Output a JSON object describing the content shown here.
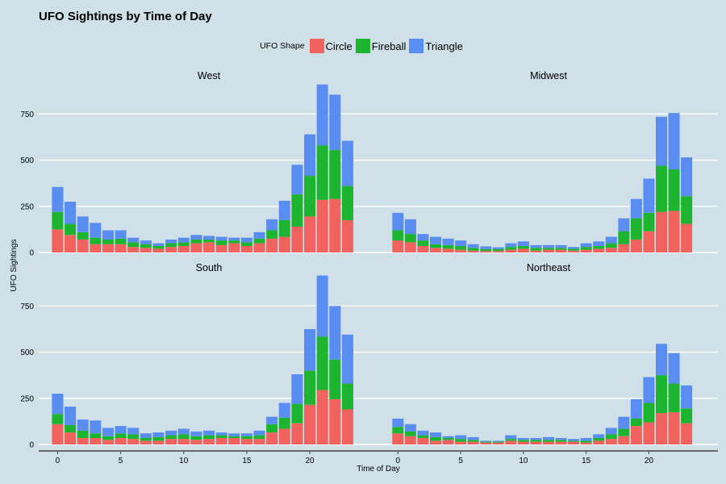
{
  "colors": {
    "background": "#cfe0e8",
    "grid": "#ffffff",
    "axis": "#444444",
    "circle": "#f2635f",
    "fireball": "#1db52f",
    "triangle": "#5a8df2"
  },
  "chart_data": {
    "type": "bar",
    "stacked": true,
    "faceted": true,
    "title": "UFO Sightings by Time of Day",
    "xlabel": "Time of Day",
    "ylabel": "UFO Sightings",
    "legend_title": "UFO Shape",
    "legend_position": "top",
    "xlim": [
      -1.5,
      25.5
    ],
    "ylim": [
      0,
      900
    ],
    "xticks": [
      0,
      5,
      10,
      15,
      20
    ],
    "yticks": [
      0,
      250,
      500,
      750
    ],
    "grid": true,
    "series_names": [
      "Circle",
      "Fireball",
      "Triangle"
    ],
    "hours": [
      0,
      1,
      2,
      3,
      4,
      5,
      6,
      7,
      8,
      9,
      10,
      11,
      12,
      13,
      14,
      15,
      16,
      17,
      18,
      19,
      20,
      21,
      22,
      23
    ],
    "panels": [
      {
        "name": "West",
        "series": [
          {
            "name": "Circle",
            "values": [
              125,
              95,
              70,
              45,
              45,
              45,
              30,
              25,
              20,
              30,
              35,
              50,
              55,
              40,
              50,
              35,
              50,
              75,
              85,
              140,
              195,
              285,
              290,
              175
            ]
          },
          {
            "name": "Fireball",
            "values": [
              95,
              60,
              40,
              35,
              25,
              30,
              25,
              20,
              15,
              20,
              20,
              20,
              15,
              25,
              15,
              20,
              25,
              45,
              90,
              175,
              220,
              295,
              265,
              185
            ]
          },
          {
            "name": "Triangle",
            "values": [
              135,
              120,
              85,
              80,
              50,
              45,
              25,
              20,
              15,
              20,
              25,
              25,
              20,
              20,
              15,
              25,
              35,
              60,
              105,
              160,
              225,
              330,
              300,
              245
            ]
          }
        ]
      },
      {
        "name": "Midwest",
        "series": [
          {
            "name": "Circle",
            "values": [
              65,
              55,
              35,
              25,
              20,
              15,
              10,
              8,
              8,
              15,
              20,
              10,
              15,
              15,
              10,
              15,
              20,
              25,
              45,
              70,
              115,
              220,
              225,
              155
            ]
          },
          {
            "name": "Fireball",
            "values": [
              55,
              45,
              30,
              20,
              20,
              20,
              15,
              10,
              10,
              15,
              15,
              15,
              10,
              10,
              10,
              15,
              15,
              25,
              70,
              115,
              100,
              250,
              225,
              150
            ]
          },
          {
            "name": "Triangle",
            "values": [
              95,
              80,
              35,
              40,
              35,
              30,
              20,
              15,
              10,
              20,
              25,
              15,
              15,
              15,
              10,
              20,
              25,
              35,
              70,
              105,
              185,
              265,
              305,
              210
            ]
          }
        ]
      },
      {
        "name": "South",
        "series": [
          {
            "name": "Circle",
            "values": [
              110,
              65,
              35,
              35,
              25,
              35,
              30,
              20,
              20,
              30,
              30,
              25,
              30,
              35,
              35,
              30,
              30,
              65,
              85,
              115,
              215,
              295,
              245,
              190
            ]
          },
          {
            "name": "Fireball",
            "values": [
              55,
              40,
              40,
              25,
              20,
              25,
              25,
              15,
              20,
              20,
              25,
              20,
              20,
              15,
              10,
              15,
              20,
              45,
              60,
              105,
              185,
              290,
              215,
              140
            ]
          },
          {
            "name": "Triangle",
            "values": [
              110,
              100,
              60,
              70,
              45,
              40,
              35,
              25,
              25,
              25,
              30,
              25,
              25,
              15,
              15,
              15,
              25,
              40,
              80,
              160,
              225,
              330,
              290,
              265
            ]
          }
        ]
      },
      {
        "name": "Northeast",
        "series": [
          {
            "name": "Circle",
            "values": [
              60,
              45,
              35,
              20,
              25,
              15,
              15,
              10,
              10,
              20,
              15,
              15,
              15,
              15,
              15,
              10,
              20,
              30,
              45,
              100,
              120,
              170,
              175,
              115
            ]
          },
          {
            "name": "Fireball",
            "values": [
              35,
              25,
              15,
              20,
              10,
              15,
              10,
              5,
              5,
              10,
              10,
              10,
              10,
              10,
              5,
              10,
              15,
              25,
              40,
              40,
              105,
              205,
              155,
              80
            ]
          },
          {
            "name": "Triangle",
            "values": [
              45,
              40,
              25,
              25,
              10,
              20,
              15,
              5,
              5,
              20,
              10,
              10,
              15,
              10,
              10,
              15,
              20,
              35,
              65,
              105,
              140,
              170,
              165,
              125
            ]
          }
        ]
      }
    ]
  }
}
